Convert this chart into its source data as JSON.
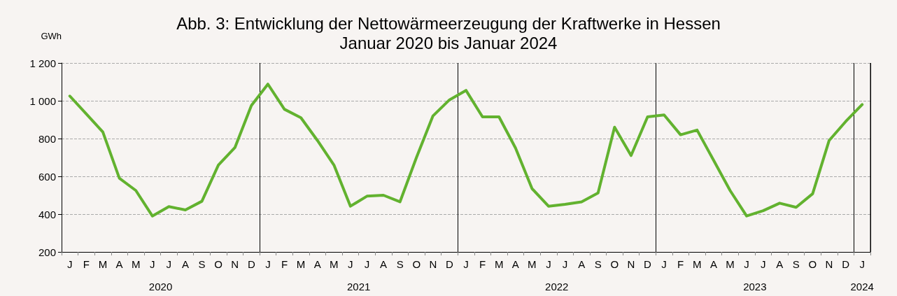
{
  "chart_data": {
    "type": "line",
    "title": "Abb. 3: Entwicklung der Nettowärmeerzeugung der Kraftwerke in Hessen",
    "subtitle": "Januar 2020 bis Januar 2024",
    "ylabel": "GWh",
    "categories": [
      "J",
      "F",
      "M",
      "A",
      "M",
      "J",
      "J",
      "A",
      "S",
      "O",
      "N",
      "D",
      "J",
      "F",
      "M",
      "A",
      "M",
      "J",
      "J",
      "A",
      "S",
      "O",
      "N",
      "D",
      "J",
      "F",
      "M",
      "A",
      "M",
      "J",
      "J",
      "A",
      "S",
      "O",
      "N",
      "D",
      "J",
      "F",
      "M",
      "A",
      "M",
      "J",
      "J",
      "A",
      "S",
      "O",
      "N",
      "D",
      "J"
    ],
    "series": [
      {
        "color": "#62b22f",
        "values": [
          1025,
          930,
          835,
          590,
          525,
          390,
          440,
          422,
          468,
          660,
          752,
          975,
          1088,
          955,
          910,
          790,
          660,
          442,
          495,
          500,
          465,
          700,
          920,
          1005,
          1055,
          915,
          915,
          750,
          535,
          442,
          452,
          465,
          512,
          860,
          710,
          915,
          925,
          820,
          845,
          685,
          525,
          390,
          418,
          458,
          436,
          508,
          790,
          890,
          980
        ]
      }
    ],
    "ylim": [
      200,
      1200
    ],
    "yticks": [
      200,
      400,
      600,
      800,
      {
        "value": 1000,
        "label": "1 000"
      },
      {
        "value": 1200,
        "label": "1 200"
      }
    ],
    "grid": "y",
    "annotations": [
      "2020",
      "2021",
      "2022",
      "2023",
      "2024"
    ],
    "marker": "none",
    "line_style": "solid"
  }
}
